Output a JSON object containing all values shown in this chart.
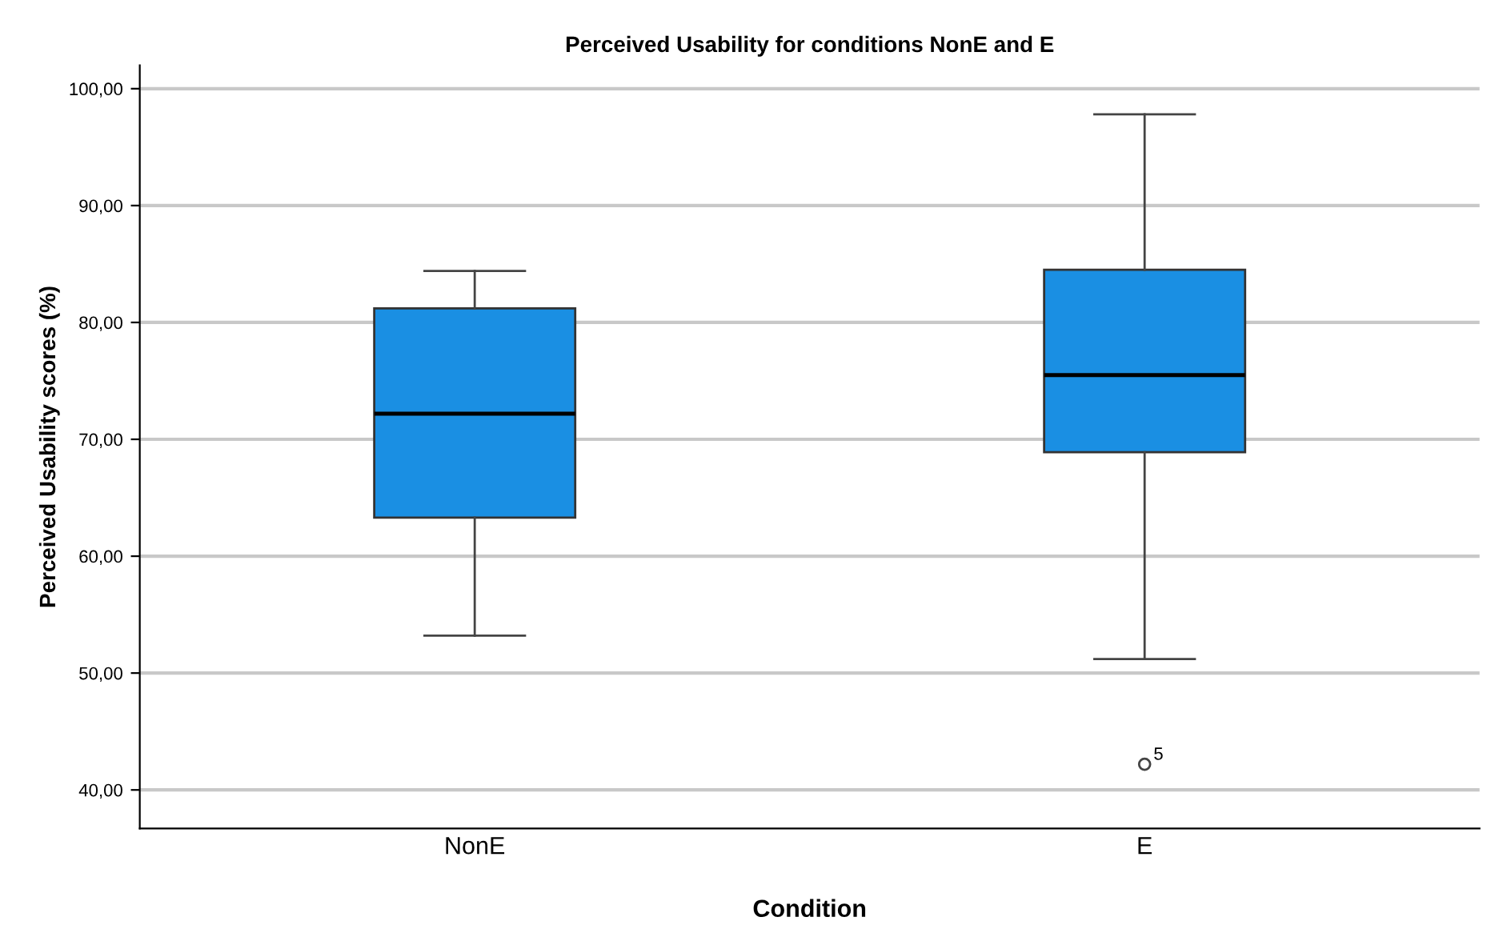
{
  "chart_data": {
    "type": "box",
    "title": "Perceived Usability for conditions NonE and E",
    "xlabel": "Condition",
    "ylabel": "Perceived Usability scores (%)",
    "categories": [
      "NonE",
      "E"
    ],
    "boxes": [
      {
        "low": 53.2,
        "q1": 63.3,
        "median": 72.2,
        "q3": 81.2,
        "high": 84.4
      },
      {
        "low": 51.2,
        "q1": 68.9,
        "median": 75.5,
        "q3": 84.5,
        "high": 97.8,
        "outliers": [
          42.2
        ]
      }
    ],
    "color": "#1a8fe3",
    "ylim": [
      36.7,
      102
    ],
    "yticks": [
      {
        "value": 40,
        "label": "40,00"
      },
      {
        "value": 50,
        "label": "50,00"
      },
      {
        "value": 60,
        "label": "60,00"
      },
      {
        "value": 70,
        "label": "70,00"
      },
      {
        "value": 80,
        "label": "80,00"
      },
      {
        "value": 90,
        "label": "90,00"
      },
      {
        "value": 100,
        "label": "100,00"
      }
    ],
    "grid": "y",
    "annotations": [
      "5"
    ]
  }
}
